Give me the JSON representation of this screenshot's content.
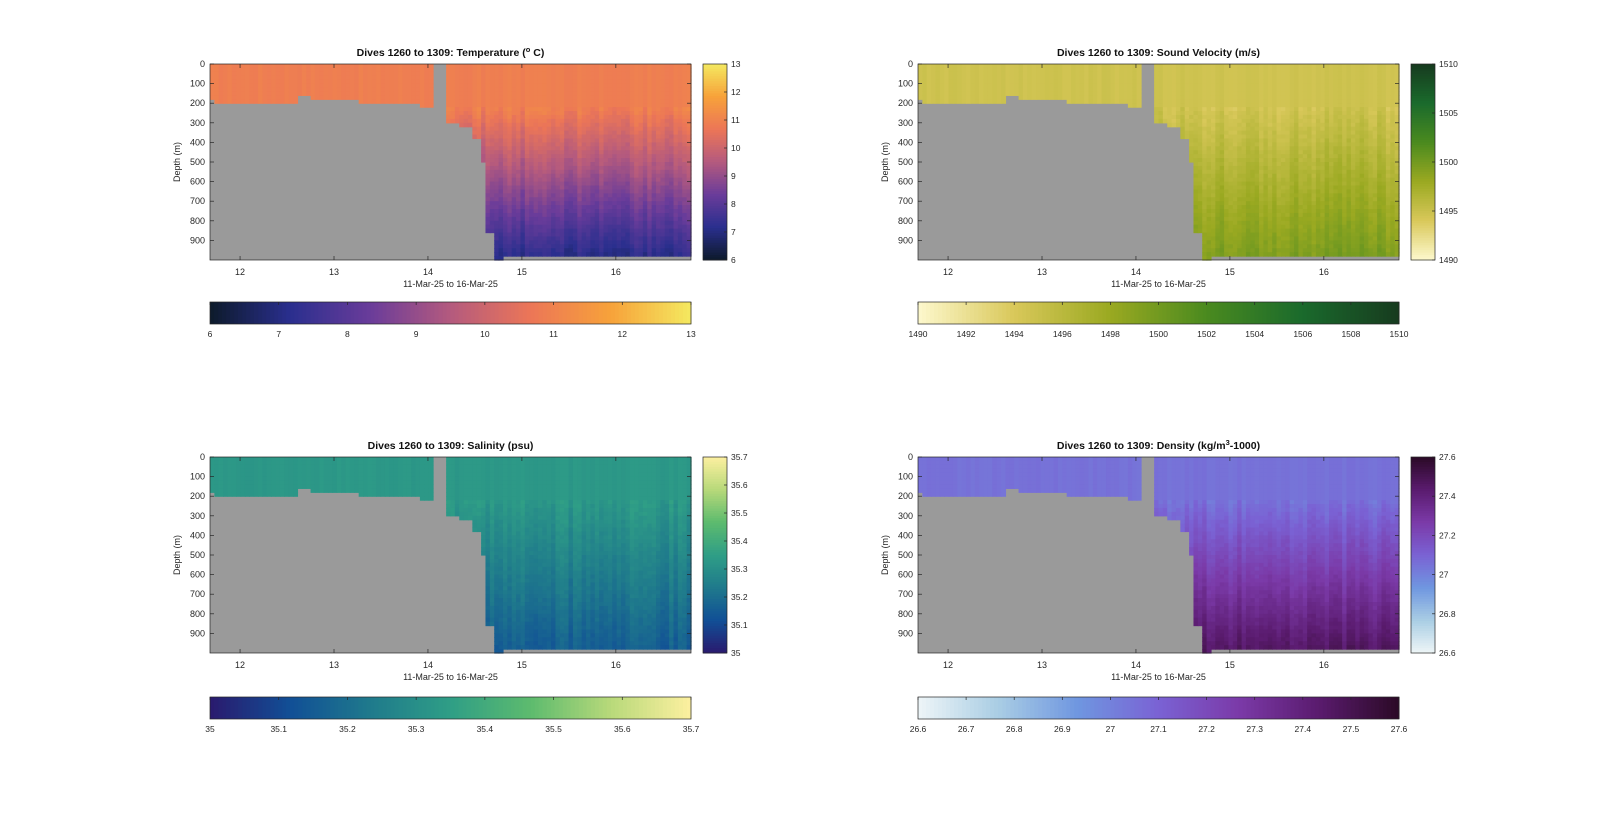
{
  "chart_data": [
    {
      "type": "heatmap",
      "title_parts": [
        "Dives 1260 to 1309: Temperature (",
        "o",
        " C)"
      ],
      "xlabel": "11-Mar-25 to 16-Mar-25",
      "ylabel": "Depth (m)",
      "xlim": [
        11.68,
        16.8
      ],
      "ylim": [
        0,
        1000
      ],
      "x_ticks": [
        12,
        13,
        14,
        15,
        16
      ],
      "y_ticks": [
        0,
        100,
        200,
        300,
        400,
        500,
        600,
        700,
        800,
        900
      ],
      "colorbar_ticks": [
        6,
        7,
        8,
        9,
        10,
        11,
        12,
        13
      ],
      "color_range": [
        6,
        13
      ],
      "colormap": [
        "#0d1a2b",
        "#2a2f8e",
        "#6a3c9a",
        "#b45a7e",
        "#ec7657",
        "#f7a23a",
        "#f4e960"
      ],
      "surface_value": 10.9,
      "deep_value": 7.2,
      "gap_color": "#9a9a9a"
    },
    {
      "type": "heatmap",
      "title_parts": [
        "Dives 1260 to 1309: Sound Velocity (m/s)"
      ],
      "xlabel": "11-Mar-25 to 16-Mar-25",
      "ylabel": "Depth (m)",
      "xlim": [
        11.68,
        16.8
      ],
      "ylim": [
        0,
        1000
      ],
      "x_ticks": [
        12,
        13,
        14,
        15,
        16
      ],
      "y_ticks": [
        0,
        100,
        200,
        300,
        400,
        500,
        600,
        700,
        800,
        900
      ],
      "colorbar_ticks": [
        1490,
        1495,
        1500,
        1505,
        1510
      ],
      "horizontal_colorbar_ticks": [
        1490,
        1492,
        1494,
        1496,
        1498,
        1500,
        1502,
        1504,
        1506,
        1508,
        1510
      ],
      "color_range": [
        1490,
        1510
      ],
      "colormap": [
        "#fdf8cd",
        "#d9c85a",
        "#9aa921",
        "#4a8a1f",
        "#1a6a2c",
        "#173b1f"
      ],
      "surface_value": 1494.7,
      "deep_value": 1499.5,
      "gap_color": "#9a9a9a"
    },
    {
      "type": "heatmap",
      "title_parts": [
        "Dives 1260 to 1309: Salinity (psu)"
      ],
      "xlabel": "11-Mar-25 to 16-Mar-25",
      "ylabel": "Depth (m)",
      "xlim": [
        11.68,
        16.8
      ],
      "ylim": [
        0,
        1000
      ],
      "x_ticks": [
        12,
        13,
        14,
        15,
        16
      ],
      "y_ticks": [
        0,
        100,
        200,
        300,
        400,
        500,
        600,
        700,
        800,
        900
      ],
      "colorbar_ticks": [
        35,
        35.1,
        35.2,
        35.3,
        35.4,
        35.5,
        35.6,
        35.7
      ],
      "color_range": [
        35,
        35.7
      ],
      "colormap": [
        "#2a1a6e",
        "#114f96",
        "#1f7a8c",
        "#2f9e86",
        "#5dbb6e",
        "#b8d97a",
        "#fdf0a0"
      ],
      "surface_value": 35.33,
      "deep_value": 35.16,
      "gap_color": "#9a9a9a"
    },
    {
      "type": "heatmap",
      "title_parts": [
        "Dives 1260 to 1309: Density (kg/m",
        "3",
        "-1000)"
      ],
      "xlabel": "11-Mar-25 to 16-Mar-25",
      "ylabel": "Depth (m)",
      "xlim": [
        11.68,
        16.8
      ],
      "ylim": [
        0,
        1000
      ],
      "x_ticks": [
        12,
        13,
        14,
        15,
        16
      ],
      "y_ticks": [
        0,
        100,
        200,
        300,
        400,
        500,
        600,
        700,
        800,
        900
      ],
      "colorbar_ticks": [
        26.6,
        26.8,
        27,
        27.2,
        27.4,
        27.6
      ],
      "horizontal_colorbar_ticks": [
        26.6,
        26.7,
        26.8,
        26.9,
        27,
        27.1,
        27.2,
        27.3,
        27.4,
        27.5,
        27.6
      ],
      "color_range": [
        26.6,
        27.6
      ],
      "colormap": [
        "#eef5f7",
        "#a9cde4",
        "#6f96e0",
        "#7a62d4",
        "#7b3aa8",
        "#5a1b6e",
        "#2b0a26"
      ],
      "surface_value": 27.05,
      "deep_value": 27.45,
      "gap_color": "#9a9a9a"
    }
  ]
}
